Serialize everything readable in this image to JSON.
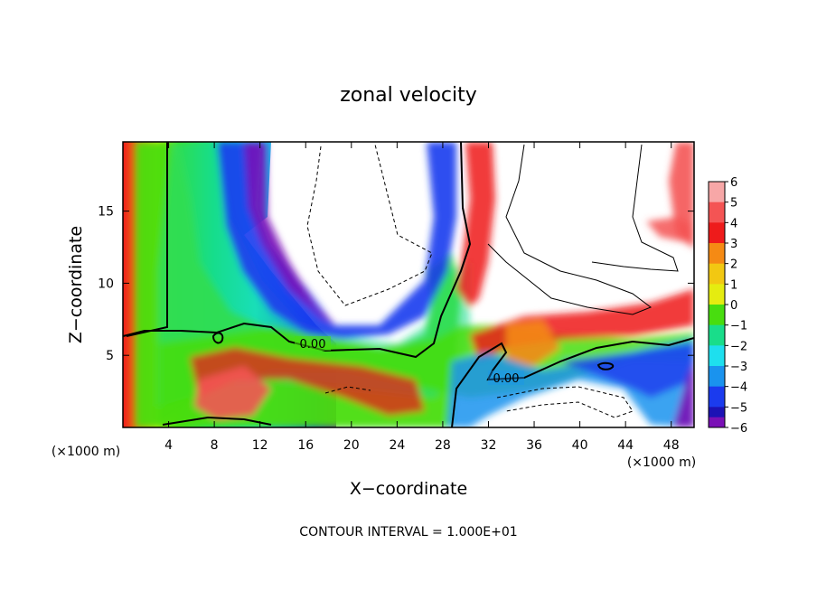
{
  "chart_data": {
    "type": "heatmap",
    "title": "zonal velocity",
    "xlabel": "X−coordinate",
    "ylabel": "Z−coordinate",
    "x_unit_label": "(×1000 m)",
    "y_unit_label": "(×1000 m)",
    "xlim": [
      0,
      50
    ],
    "ylim": [
      0,
      19.8
    ],
    "x_ticks": [
      4,
      8,
      12,
      16,
      20,
      24,
      28,
      32,
      36,
      40,
      44,
      48
    ],
    "y_ticks": [
      5,
      10,
      15
    ],
    "colorbar": {
      "levels": [
        6,
        5,
        4,
        3,
        2,
        1,
        0,
        -1,
        -2,
        -3,
        -4,
        -5,
        -6
      ],
      "tick_labels": [
        "6",
        "5",
        "4",
        "3",
        "2",
        "1",
        "0",
        "−1",
        "−2",
        "−3",
        "−4",
        "−5",
        "−6"
      ],
      "colors": [
        "#f7a7a7",
        "#f45454",
        "#ee1b1b",
        "#f58a14",
        "#f2c812",
        "#e5ec10",
        "#48dd0f",
        "#19dd8a",
        "#1edfee",
        "#1a93ee",
        "#1b3bee",
        "#1c12b5",
        "#7a10b6"
      ]
    },
    "contour_labels": [
      {
        "text": "0.00",
        "x": 17.5,
        "y": 5.6
      },
      {
        "text": "0.00",
        "x": 33.6,
        "y": 3.4
      }
    ],
    "footer": "CONTOUR INTERVAL = 1.000E+01"
  }
}
